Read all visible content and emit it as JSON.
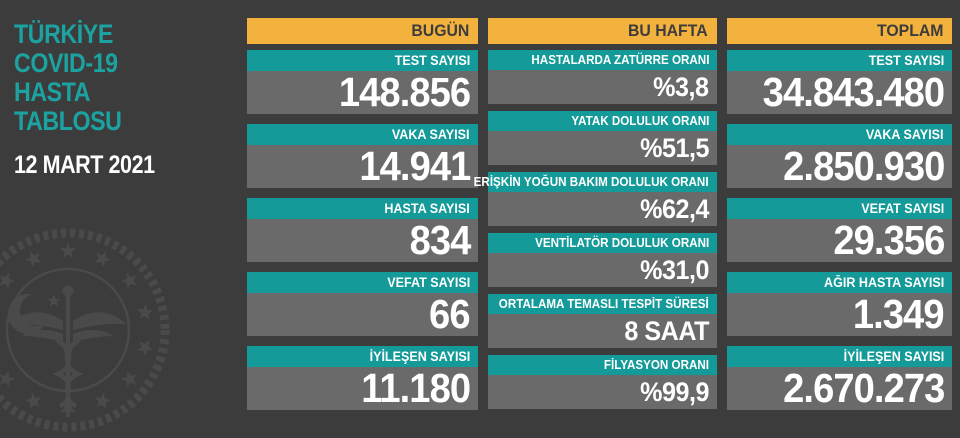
{
  "page": {
    "background": "#3C3C3C"
  },
  "sidebar": {
    "title_lines": [
      "TÜRKİYE",
      "COVID-19",
      "HASTA",
      "TABLOSU"
    ],
    "date": "12 MART 2021",
    "watermark_icon": "turkey-health-ministry-emblem"
  },
  "colors": {
    "column_header_bg": "#F2B23D",
    "column_header_text": "#3C3C3C",
    "label_band_bg": "#149A98",
    "value_box_bg": "#6A6A6A",
    "value_text": "#FFFFFF",
    "sidebar_title_text": "#1CA3A1",
    "background": "#3C3C3C"
  },
  "chart_data": {
    "type": "table",
    "title": "TÜRKİYE COVID-19 HASTA TABLOSU",
    "date": "12 MART 2021",
    "groups": [
      {
        "id": "bugun",
        "name": "BUGÜN",
        "rows": [
          {
            "label": "TEST SAYISI",
            "value": "148.856"
          },
          {
            "label": "VAKA SAYISI",
            "value": "14.941"
          },
          {
            "label": "HASTA SAYISI",
            "value": "834"
          },
          {
            "label": "VEFAT SAYISI",
            "value": "66"
          },
          {
            "label": "İYİLEŞEN SAYISI",
            "value": "11.180"
          }
        ]
      },
      {
        "id": "bu-hafta",
        "name": "BU HAFTA",
        "rows": [
          {
            "label": "HASTALARDA ZATÜRRE ORANI",
            "value": "%3,8"
          },
          {
            "label": "YATAK DOLULUK ORANI",
            "value": "%51,5"
          },
          {
            "label": "ERİŞKİN YOĞUN BAKIM DOLULUK ORANI",
            "value": "%62,4"
          },
          {
            "label": "VENTİLATÖR DOLULUK ORANI",
            "value": "%31,0"
          },
          {
            "label": "ORTALAMA TEMASLI TESPİT SÜRESİ",
            "value": "8 SAAT"
          },
          {
            "label": "FİLYASYON ORANI",
            "value": "%99,9"
          }
        ]
      },
      {
        "id": "toplam",
        "name": "TOPLAM",
        "rows": [
          {
            "label": "TEST SAYISI",
            "value": "34.843.480"
          },
          {
            "label": "VAKA SAYISI",
            "value": "2.850.930"
          },
          {
            "label": "VEFAT SAYISI",
            "value": "29.356"
          },
          {
            "label": "AĞIR HASTA SAYISI",
            "value": "1.349"
          },
          {
            "label": "İYİLEŞEN SAYISI",
            "value": "2.670.273"
          }
        ]
      }
    ]
  }
}
